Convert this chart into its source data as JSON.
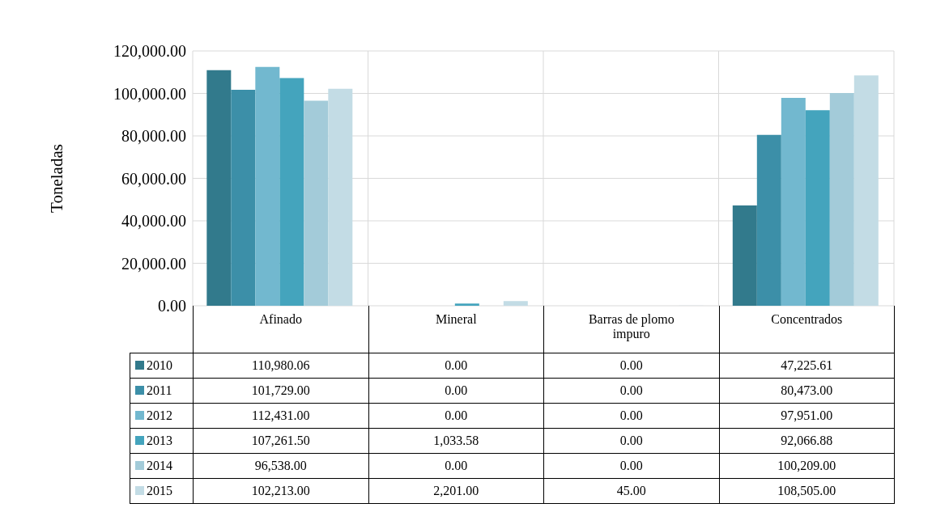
{
  "chart_data": {
    "type": "bar",
    "ylabel": "Toneladas",
    "categories": [
      "Afinado",
      "Mineral",
      "Barras de plomo impuro",
      "Concentrados"
    ],
    "series": [
      {
        "name": "2010",
        "color": "#327a8c",
        "values": [
          110980.06,
          0,
          0,
          47225.61
        ],
        "value_labels": [
          "110,980.06",
          "0.00",
          "0.00",
          "47,225.61"
        ]
      },
      {
        "name": "2011",
        "color": "#3c8fa8",
        "values": [
          101729,
          0,
          0,
          80473
        ],
        "value_labels": [
          "101,729.00",
          "0.00",
          "0.00",
          "80,473.00"
        ]
      },
      {
        "name": "2012",
        "color": "#72b8cf",
        "values": [
          112431,
          0,
          0,
          97951
        ],
        "value_labels": [
          "112,431.00",
          "0.00",
          "0.00",
          "97,951.00"
        ]
      },
      {
        "name": "2013",
        "color": "#44a4bd",
        "values": [
          107261.5,
          1033.58,
          0,
          92066.88
        ],
        "value_labels": [
          "107,261.50",
          "1,033.58",
          "0.00",
          "92,066.88"
        ]
      },
      {
        "name": "2014",
        "color": "#a3cbd9",
        "values": [
          96538,
          0,
          0,
          100209
        ],
        "value_labels": [
          "96,538.00",
          "0.00",
          "0.00",
          "100,209.00"
        ]
      },
      {
        "name": "2015",
        "color": "#c3dce5",
        "values": [
          102213,
          2201,
          45,
          108505
        ],
        "value_labels": [
          "102,213.00",
          "2,201.00",
          "45.00",
          "108,505.00"
        ]
      }
    ],
    "ylim": [
      0,
      120000
    ],
    "yticks": [
      {
        "value": 0,
        "label": "0.00"
      },
      {
        "value": 20000,
        "label": "20,000.00"
      },
      {
        "value": 40000,
        "label": "40,000.00"
      },
      {
        "value": 60000,
        "label": "60,000.00"
      },
      {
        "value": 80000,
        "label": "80,000.00"
      },
      {
        "value": 100000,
        "label": "100,000.00"
      },
      {
        "value": 120000,
        "label": "120,000.00"
      }
    ],
    "grid": true,
    "legend": "bottom"
  }
}
